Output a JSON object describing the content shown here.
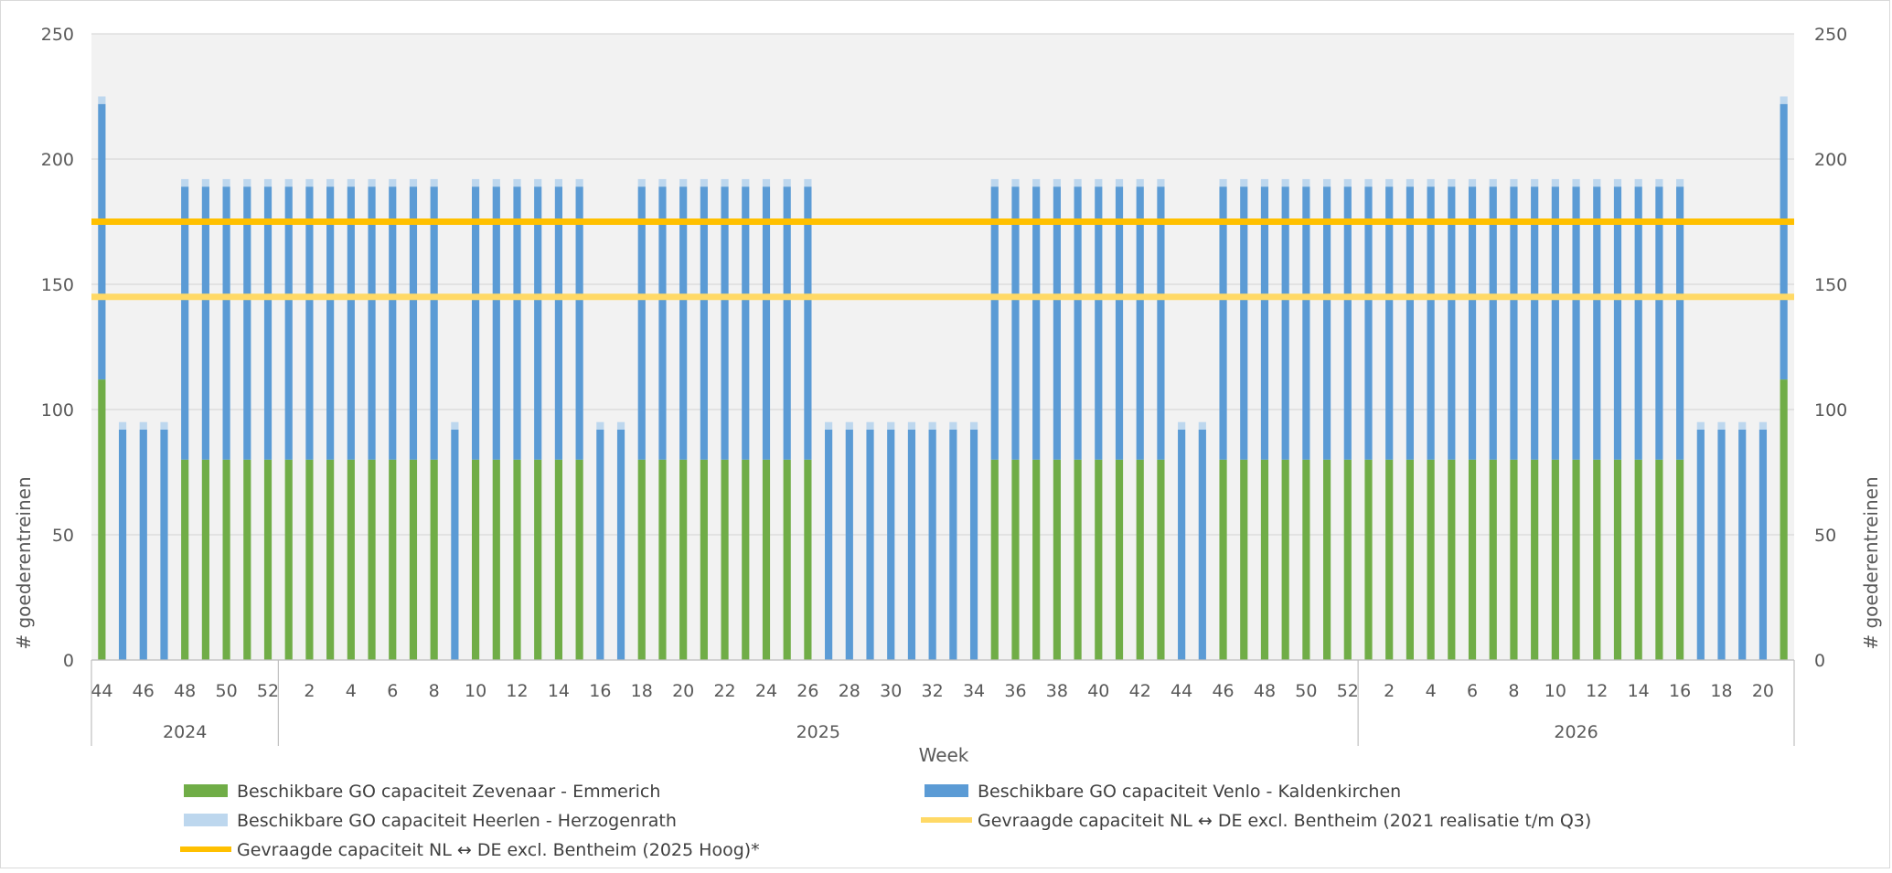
{
  "chart_data": {
    "type": "bar",
    "xlabel": "Week",
    "ylabel": "# goederentreinen",
    "ylim": [
      0,
      250
    ],
    "yticks": [
      "0",
      "50",
      "100",
      "150",
      "200",
      "250"
    ],
    "grid": "horizontal",
    "legend_position": "bottom",
    "year_groups": [
      {
        "label": "2024",
        "count": 9
      },
      {
        "label": "2025",
        "count": 52
      },
      {
        "label": "2026",
        "count": 21
      }
    ],
    "categories": [
      "44",
      "45",
      "46",
      "47",
      "48",
      "49",
      "50",
      "51",
      "52",
      "1",
      "2",
      "3",
      "4",
      "5",
      "6",
      "7",
      "8",
      "9",
      "10",
      "11",
      "12",
      "13",
      "14",
      "15",
      "16",
      "17",
      "18",
      "19",
      "20",
      "21",
      "22",
      "23",
      "24",
      "25",
      "26",
      "27",
      "28",
      "29",
      "30",
      "31",
      "32",
      "33",
      "34",
      "35",
      "36",
      "37",
      "38",
      "39",
      "40",
      "41",
      "42",
      "43",
      "44",
      "45",
      "46",
      "47",
      "48",
      "49",
      "50",
      "51",
      "52",
      "1",
      "2",
      "3",
      "4",
      "5",
      "6",
      "7",
      "8",
      "9",
      "10",
      "11",
      "12",
      "13",
      "14",
      "15",
      "16",
      "17",
      "18",
      "19",
      "20",
      "21"
    ],
    "series": [
      {
        "name": "Beschikbare GO capaciteit Zevenaar - Emmerich",
        "color": "#70ad47",
        "values": [
          112,
          0,
          0,
          0,
          80,
          80,
          80,
          80,
          80,
          80,
          80,
          80,
          80,
          80,
          80,
          80,
          80,
          0,
          80,
          80,
          80,
          80,
          80,
          80,
          0,
          0,
          80,
          80,
          80,
          80,
          80,
          80,
          80,
          80,
          80,
          0,
          0,
          0,
          0,
          0,
          0,
          0,
          0,
          80,
          80,
          80,
          80,
          80,
          80,
          80,
          80,
          80,
          0,
          0,
          80,
          80,
          80,
          80,
          80,
          80,
          80,
          80,
          80,
          80,
          80,
          80,
          80,
          80,
          80,
          80,
          80,
          80,
          80,
          80,
          80,
          80,
          80,
          0,
          0,
          0,
          0,
          112
        ]
      },
      {
        "name": "Beschikbare GO capaciteit Venlo - Kaldenkirchen",
        "color": "#5b9bd5",
        "values": [
          110,
          92,
          92,
          92,
          109,
          109,
          109,
          109,
          109,
          109,
          109,
          109,
          109,
          109,
          109,
          109,
          109,
          92,
          109,
          109,
          109,
          109,
          109,
          109,
          92,
          92,
          109,
          109,
          109,
          109,
          109,
          109,
          109,
          109,
          109,
          92,
          92,
          92,
          92,
          92,
          92,
          92,
          92,
          109,
          109,
          109,
          109,
          109,
          109,
          109,
          109,
          109,
          92,
          92,
          109,
          109,
          109,
          109,
          109,
          109,
          109,
          109,
          109,
          109,
          109,
          109,
          109,
          109,
          109,
          109,
          109,
          109,
          109,
          109,
          109,
          109,
          109,
          92,
          92,
          92,
          92,
          110
        ]
      },
      {
        "name": "Beschikbare GO capaciteit Heerlen - Herzogenrath",
        "color": "#bdd7ee",
        "values": [
          3,
          3,
          3,
          3,
          3,
          3,
          3,
          3,
          3,
          3,
          3,
          3,
          3,
          3,
          3,
          3,
          3,
          3,
          3,
          3,
          3,
          3,
          3,
          3,
          3,
          3,
          3,
          3,
          3,
          3,
          3,
          3,
          3,
          3,
          3,
          3,
          3,
          3,
          3,
          3,
          3,
          3,
          3,
          3,
          3,
          3,
          3,
          3,
          3,
          3,
          3,
          3,
          3,
          3,
          3,
          3,
          3,
          3,
          3,
          3,
          3,
          3,
          3,
          3,
          3,
          3,
          3,
          3,
          3,
          3,
          3,
          3,
          3,
          3,
          3,
          3,
          3,
          3,
          3,
          3,
          3,
          3
        ]
      }
    ],
    "lines": [
      {
        "name": "Gevraagde capaciteit NL <-> DE excl. Bentheim (2021 realisatie t/m Q3)",
        "color": "#ffd966",
        "value": 145
      },
      {
        "name": "Gevraagde capaciteit NL <-> DE excl. Bentheim (2025 Hoog)*",
        "color": "#ffc000",
        "value": 175
      }
    ]
  },
  "legend": [
    {
      "label": "Beschikbare GO capaciteit Zevenaar - Emmerich",
      "color": "#70ad47",
      "kind": "bar"
    },
    {
      "label": "Beschikbare GO capaciteit Venlo - Kaldenkirchen",
      "color": "#5b9bd5",
      "kind": "bar"
    },
    {
      "label": "Beschikbare GO capaciteit Heerlen - Herzogenrath",
      "color": "#bdd7ee",
      "kind": "bar"
    },
    {
      "label": "Gevraagde capaciteit NL ↔ DE excl. Bentheim (2021 realisatie t/m Q3)",
      "color": "#ffd966",
      "kind": "line"
    },
    {
      "label": "Gevraagde capaciteit NL ↔ DE excl. Bentheim (2025 Hoog)*",
      "color": "#ffc000",
      "kind": "line"
    }
  ]
}
